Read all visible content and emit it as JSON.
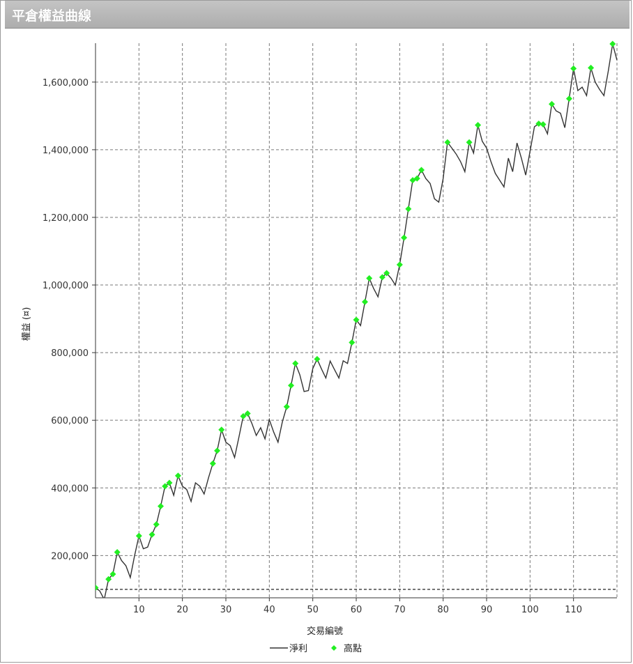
{
  "window": {
    "title": "平倉權益曲線"
  },
  "chart_data": {
    "type": "line",
    "xlabel": "交易編號",
    "ylabel": "權益 (¤)",
    "xlim": [
      0,
      120
    ],
    "ylim": [
      75000,
      1715000
    ],
    "xticks": [
      10,
      20,
      30,
      40,
      50,
      60,
      70,
      80,
      90,
      100,
      110
    ],
    "xtick_labels": [
      "10",
      "20",
      "30",
      "40",
      "50",
      "60",
      "70",
      "80",
      "90",
      "100",
      "110"
    ],
    "yticks": [
      200000,
      400000,
      600000,
      800000,
      1000000,
      1200000,
      1400000,
      1600000
    ],
    "ytick_labels": [
      "200,000",
      "400,000",
      "600,000",
      "800,000",
      "1,000,000",
      "1,200,000",
      "1,400,000",
      "1,600,000"
    ],
    "baseline": 100000,
    "grid": true,
    "legend_position": "bottom",
    "series": [
      {
        "name": "淨利",
        "style": "line",
        "color": "#333333",
        "x": [
          0,
          1,
          2,
          3,
          4,
          5,
          6,
          7,
          8,
          9,
          10,
          11,
          12,
          13,
          14,
          15,
          16,
          17,
          18,
          19,
          20,
          21,
          22,
          23,
          24,
          25,
          26,
          27,
          28,
          29,
          30,
          31,
          32,
          33,
          34,
          35,
          36,
          37,
          38,
          39,
          40,
          41,
          42,
          43,
          44,
          45,
          46,
          47,
          48,
          49,
          50,
          51,
          52,
          53,
          54,
          55,
          56,
          57,
          58,
          59,
          60,
          61,
          62,
          63,
          64,
          65,
          66,
          67,
          68,
          69,
          70,
          71,
          72,
          73,
          74,
          75,
          76,
          77,
          78,
          79,
          80,
          81,
          82,
          83,
          84,
          85,
          86,
          87,
          88,
          89,
          90,
          91,
          92,
          93,
          94,
          95,
          96,
          97,
          98,
          99,
          100,
          101,
          102,
          103,
          104,
          105,
          106,
          107,
          108,
          109,
          110,
          111,
          112,
          113,
          114,
          115,
          116,
          117,
          118,
          119,
          120
        ],
        "y": [
          105000,
          95000,
          70000,
          130000,
          145000,
          210000,
          185000,
          170000,
          135000,
          200000,
          258000,
          220000,
          225000,
          262000,
          292000,
          346000,
          405000,
          415000,
          378000,
          436000,
          405000,
          395000,
          360000,
          415000,
          405000,
          382000,
          430000,
          472000,
          510000,
          572000,
          535000,
          525000,
          490000,
          550000,
          612000,
          620000,
          590000,
          555000,
          578000,
          545000,
          602000,
          565000,
          535000,
          595000,
          640000,
          703000,
          768000,
          735000,
          685000,
          688000,
          753000,
          781000,
          752000,
          725000,
          775000,
          750000,
          725000,
          776000,
          768000,
          830000,
          897000,
          880000,
          950000,
          1020000,
          990000,
          965000,
          1023000,
          1035000,
          1020000,
          1000000,
          1060000,
          1140000,
          1225000,
          1310000,
          1315000,
          1340000,
          1315000,
          1300000,
          1255000,
          1245000,
          1315000,
          1422000,
          1405000,
          1387000,
          1365000,
          1335000,
          1422000,
          1390000,
          1473000,
          1425000,
          1405000,
          1365000,
          1330000,
          1310000,
          1290000,
          1375000,
          1335000,
          1420000,
          1375000,
          1325000,
          1395000,
          1468000,
          1477000,
          1475000,
          1447000,
          1535000,
          1515000,
          1508000,
          1465000,
          1551000,
          1640000,
          1575000,
          1585000,
          1560000,
          1642000,
          1600000,
          1578000,
          1560000,
          1632000,
          1713000,
          1665000
        ]
      },
      {
        "name": "高點",
        "style": "markers",
        "color": "#22ee22",
        "x": [
          0,
          3,
          4,
          5,
          10,
          13,
          14,
          15,
          16,
          17,
          19,
          27,
          28,
          29,
          34,
          35,
          44,
          45,
          46,
          51,
          59,
          60,
          62,
          63,
          66,
          67,
          70,
          71,
          72,
          73,
          74,
          75,
          81,
          86,
          88,
          102,
          103,
          105,
          109,
          110,
          114,
          119
        ],
        "y": [
          105000,
          130000,
          145000,
          210000,
          258000,
          262000,
          292000,
          346000,
          405000,
          415000,
          436000,
          472000,
          510000,
          572000,
          612000,
          620000,
          640000,
          703000,
          768000,
          781000,
          830000,
          897000,
          950000,
          1020000,
          1023000,
          1035000,
          1060000,
          1140000,
          1225000,
          1310000,
          1315000,
          1340000,
          1422000,
          1422000,
          1473000,
          1477000,
          1475000,
          1535000,
          1551000,
          1640000,
          1642000,
          1713000
        ]
      }
    ]
  }
}
